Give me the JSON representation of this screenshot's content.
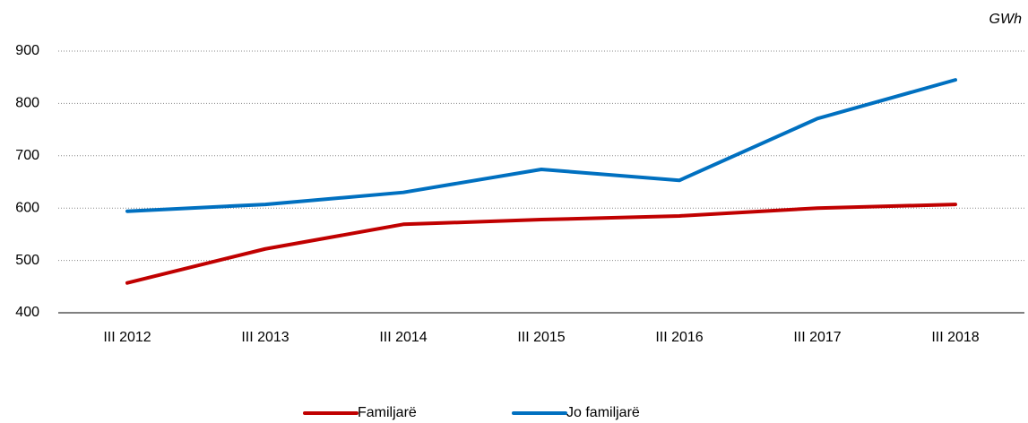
{
  "chart_data": {
    "type": "line",
    "unit_label": "GWh",
    "categories": [
      "III 2012",
      "III 2013",
      "III 2014",
      "III 2015",
      "III 2016",
      "III 2017",
      "III 2018"
    ],
    "series": [
      {
        "name": "Familjarë",
        "color": "#c00000",
        "values": [
          457,
          522,
          569,
          578,
          585,
          600,
          607
        ]
      },
      {
        "name": "Jo familjarë",
        "color": "#0070c0",
        "values": [
          594,
          607,
          630,
          674,
          653,
          771,
          845
        ]
      }
    ],
    "ylim": [
      400,
      900
    ],
    "yticks": [
      400,
      500,
      600,
      700,
      800,
      900
    ],
    "grid": true,
    "legend": "bottom"
  }
}
